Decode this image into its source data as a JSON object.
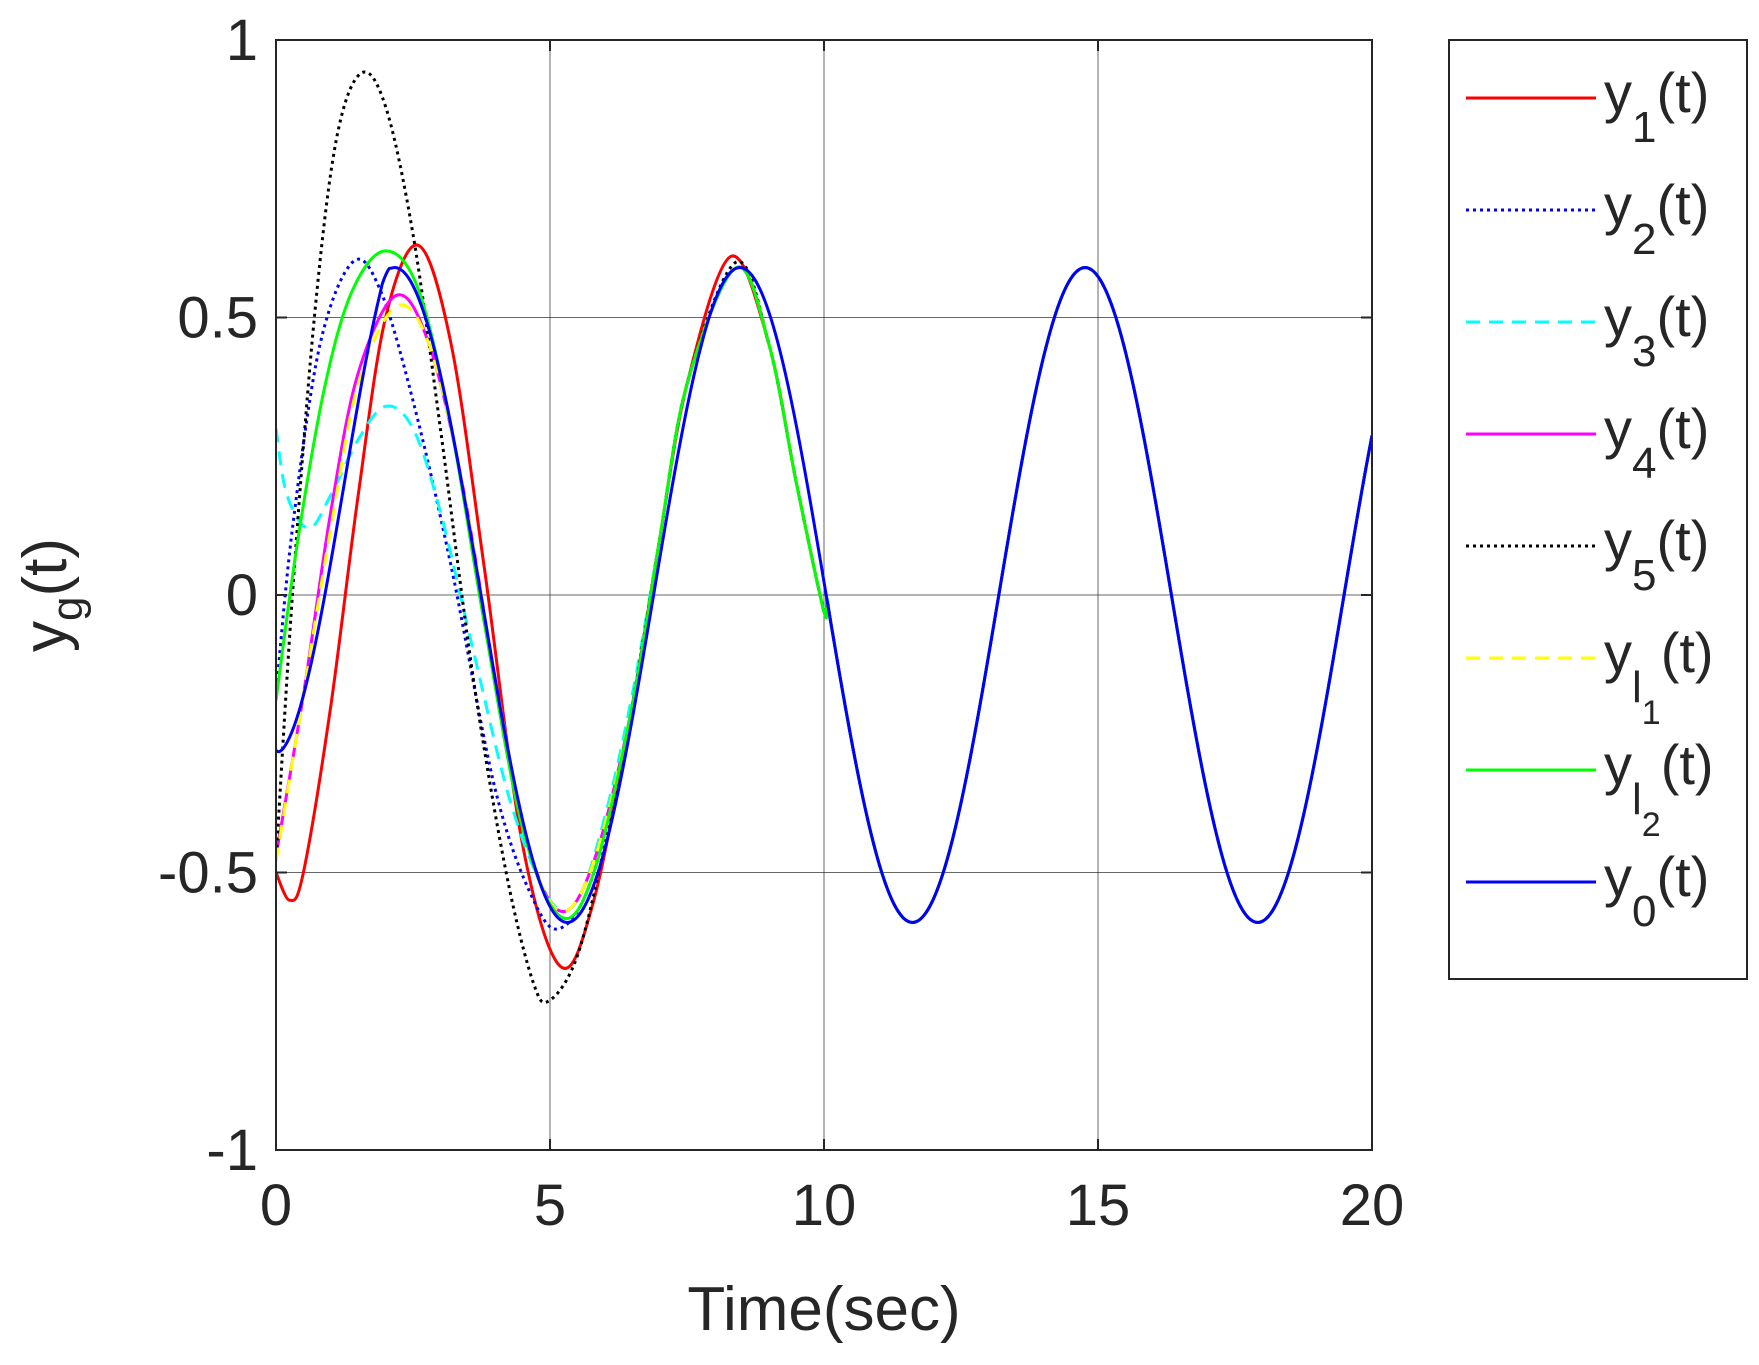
{
  "chart_data": {
    "type": "line",
    "xlabel": "Time(sec)",
    "ylabel": {
      "base": "y",
      "sub": "g",
      "suffix": "(t)"
    },
    "xlim": [
      0,
      20
    ],
    "ylim": [
      -1,
      1
    ],
    "xticks": [
      0,
      5,
      10,
      15,
      20
    ],
    "xtick_labels": [
      "0",
      "5",
      "10",
      "15",
      "20"
    ],
    "yticks": [
      -1,
      -0.5,
      0,
      0.5,
      1
    ],
    "ytick_labels": [
      "-1",
      "-0.5",
      "0",
      "0.5",
      "1"
    ],
    "grid": true,
    "legend_position": "outside-right",
    "series": [
      {
        "key": "y1",
        "label": {
          "base": "y",
          "sub": "1",
          "subsub": "",
          "suffix": "(t)"
        },
        "color": "#ff0000",
        "dash": "solid",
        "points": [
          [
            0,
            -0.5
          ],
          [
            0.25,
            -0.55
          ],
          [
            0.5,
            -0.5
          ],
          [
            1,
            -0.2
          ],
          [
            1.5,
            0.18
          ],
          [
            2,
            0.5
          ],
          [
            2.6,
            0.63
          ],
          [
            3.2,
            0.45
          ],
          [
            3.8,
            0.05
          ],
          [
            4.5,
            -0.45
          ],
          [
            5.2,
            -0.67
          ],
          [
            5.8,
            -0.55
          ],
          [
            6.5,
            -0.2
          ],
          [
            7,
            0.1
          ],
          [
            7.5,
            0.38
          ],
          [
            8.3,
            0.61
          ],
          [
            9,
            0.45
          ],
          [
            9.5,
            0.2
          ],
          [
            10,
            -0.03
          ]
        ]
      },
      {
        "key": "y2",
        "label": {
          "base": "y",
          "sub": "2",
          "subsub": "",
          "suffix": "(t)"
        },
        "color": "#0000ff",
        "dash": "dotted",
        "points": [
          [
            0,
            -0.18
          ],
          [
            0.3,
            0.12
          ],
          [
            0.8,
            0.45
          ],
          [
            1.4,
            0.6
          ],
          [
            1.9,
            0.55
          ],
          [
            2.5,
            0.35
          ],
          [
            3.2,
            0.05
          ],
          [
            4,
            -0.35
          ],
          [
            4.7,
            -0.55
          ],
          [
            5.2,
            -0.6
          ],
          [
            5.8,
            -0.5
          ],
          [
            6.5,
            -0.2
          ],
          [
            7,
            0.1
          ],
          [
            7.5,
            0.38
          ],
          [
            8.4,
            0.59
          ],
          [
            9,
            0.45
          ],
          [
            9.5,
            0.2
          ],
          [
            10,
            -0.03
          ]
        ]
      },
      {
        "key": "y3",
        "label": {
          "base": "y",
          "sub": "3",
          "subsub": "",
          "suffix": "(t)"
        },
        "color": "#00ffff",
        "dash": "dashed",
        "points": [
          [
            0,
            0.3
          ],
          [
            0.2,
            0.18
          ],
          [
            0.6,
            0.12
          ],
          [
            1,
            0.18
          ],
          [
            1.5,
            0.28
          ],
          [
            2,
            0.34
          ],
          [
            2.5,
            0.3
          ],
          [
            3,
            0.15
          ],
          [
            3.6,
            -0.1
          ],
          [
            4.3,
            -0.38
          ],
          [
            5,
            -0.55
          ],
          [
            5.5,
            -0.55
          ],
          [
            6,
            -0.4
          ],
          [
            6.5,
            -0.18
          ],
          [
            7,
            0.1
          ],
          [
            7.5,
            0.38
          ],
          [
            8.4,
            0.59
          ],
          [
            9,
            0.45
          ],
          [
            9.5,
            0.2
          ],
          [
            10,
            -0.03
          ]
        ]
      },
      {
        "key": "y4",
        "label": {
          "base": "y",
          "sub": "4",
          "subsub": "",
          "suffix": "(t)"
        },
        "color": "#ff00ff",
        "dash": "solid",
        "points": [
          [
            0,
            -0.47
          ],
          [
            0.5,
            -0.18
          ],
          [
            1,
            0.15
          ],
          [
            1.5,
            0.4
          ],
          [
            2.2,
            0.54
          ],
          [
            2.8,
            0.45
          ],
          [
            3.4,
            0.2
          ],
          [
            4,
            -0.15
          ],
          [
            4.6,
            -0.45
          ],
          [
            5.2,
            -0.57
          ],
          [
            5.8,
            -0.48
          ],
          [
            6.5,
            -0.2
          ],
          [
            7,
            0.1
          ],
          [
            7.5,
            0.38
          ],
          [
            8.4,
            0.59
          ],
          [
            9,
            0.45
          ],
          [
            9.5,
            0.2
          ],
          [
            10,
            -0.03
          ]
        ]
      },
      {
        "key": "y5",
        "label": {
          "base": "y",
          "sub": "5",
          "subsub": "",
          "suffix": "(t)"
        },
        "color": "#000000",
        "dash": "dotted",
        "points": [
          [
            0,
            -0.48
          ],
          [
            0.3,
            0.0
          ],
          [
            0.7,
            0.5
          ],
          [
            1.1,
            0.82
          ],
          [
            1.55,
            0.94
          ],
          [
            2,
            0.88
          ],
          [
            2.5,
            0.65
          ],
          [
            3,
            0.3
          ],
          [
            3.6,
            -0.15
          ],
          [
            4.2,
            -0.5
          ],
          [
            4.7,
            -0.7
          ],
          [
            5,
            -0.73
          ],
          [
            5.5,
            -0.65
          ],
          [
            6,
            -0.45
          ],
          [
            6.5,
            -0.2
          ],
          [
            7,
            0.1
          ],
          [
            7.5,
            0.38
          ],
          [
            8.4,
            0.6
          ],
          [
            9,
            0.45
          ],
          [
            9.5,
            0.2
          ],
          [
            10,
            -0.03
          ]
        ]
      },
      {
        "key": "yl1",
        "label": {
          "base": "y",
          "sub": "l",
          "subsub": "1",
          "suffix": "(t)"
        },
        "color": "#ffff00",
        "dash": "dashed",
        "points": [
          [
            0,
            -0.48
          ],
          [
            0.5,
            -0.18
          ],
          [
            1,
            0.12
          ],
          [
            1.5,
            0.38
          ],
          [
            2.2,
            0.52
          ],
          [
            2.8,
            0.45
          ],
          [
            3.4,
            0.2
          ],
          [
            4,
            -0.15
          ],
          [
            4.6,
            -0.45
          ],
          [
            5.2,
            -0.57
          ],
          [
            5.8,
            -0.48
          ],
          [
            6.5,
            -0.2
          ],
          [
            7,
            0.1
          ],
          [
            7.5,
            0.38
          ],
          [
            8.4,
            0.59
          ],
          [
            9,
            0.45
          ],
          [
            9.5,
            0.2
          ],
          [
            10,
            -0.03
          ]
        ]
      },
      {
        "key": "yl2",
        "label": {
          "base": "y",
          "sub": "l",
          "subsub": "2",
          "suffix": "(t)"
        },
        "color": "#00ff00",
        "dash": "solid",
        "points": [
          [
            0,
            -0.19
          ],
          [
            0.4,
            0.1
          ],
          [
            0.9,
            0.38
          ],
          [
            1.4,
            0.55
          ],
          [
            2,
            0.62
          ],
          [
            2.6,
            0.55
          ],
          [
            3.2,
            0.3
          ],
          [
            3.8,
            -0.05
          ],
          [
            4.5,
            -0.42
          ],
          [
            5.2,
            -0.58
          ],
          [
            5.8,
            -0.5
          ],
          [
            6.5,
            -0.2
          ],
          [
            7,
            0.1
          ],
          [
            7.5,
            0.38
          ],
          [
            8.4,
            0.59
          ],
          [
            9,
            0.45
          ],
          [
            9.5,
            0.2
          ],
          [
            10,
            -0.03
          ]
        ]
      },
      {
        "key": "y0",
        "label": {
          "base": "y",
          "sub": "0",
          "subsub": "",
          "suffix": "(t)"
        },
        "color": "#0000ff",
        "dash": "solid",
        "points": [],
        "steady": {
          "amplitude": 0.59,
          "period": 6.3,
          "zero_cross": 6.89
        }
      }
    ]
  }
}
